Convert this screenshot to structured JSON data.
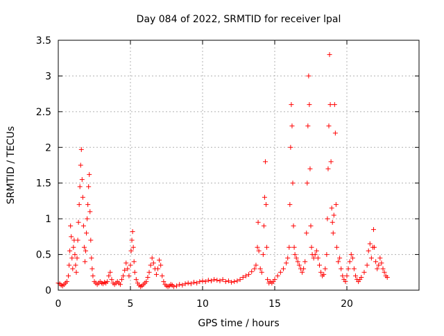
{
  "chart_data": {
    "type": "scatter",
    "title": "Day 084 of 2022, SRMTID for receiver lpal",
    "xlabel": "GPS time / hours",
    "ylabel": "SRMTID / TECUs",
    "xlim": [
      0,
      25
    ],
    "ylim": [
      0,
      3.5
    ],
    "x_ticks": [
      0,
      5,
      10,
      15,
      20
    ],
    "x_tick_labels": [
      "0",
      "5",
      "10",
      "15",
      "20"
    ],
    "y_ticks": [
      0,
      0.5,
      1,
      1.5,
      2,
      2.5,
      3,
      3.5
    ],
    "y_tick_labels": [
      "0",
      "0.5",
      "1",
      "1.5",
      "2",
      "2.5",
      "3",
      "3.5"
    ],
    "grid": true,
    "marker": "+",
    "color": "#ff0000",
    "series": [
      {
        "name": "SRMTID",
        "points": [
          [
            0.0,
            0.1
          ],
          [
            0.1,
            0.09
          ],
          [
            0.2,
            0.07
          ],
          [
            0.3,
            0.06
          ],
          [
            0.4,
            0.08
          ],
          [
            0.5,
            0.1
          ],
          [
            0.6,
            0.12
          ],
          [
            0.7,
            0.2
          ],
          [
            0.75,
            0.35
          ],
          [
            0.8,
            0.55
          ],
          [
            0.85,
            0.9
          ],
          [
            0.9,
            0.75
          ],
          [
            0.95,
            0.45
          ],
          [
            1.0,
            0.3
          ],
          [
            1.05,
            0.6
          ],
          [
            1.1,
            0.7
          ],
          [
            1.15,
            0.5
          ],
          [
            1.2,
            0.35
          ],
          [
            1.25,
            0.25
          ],
          [
            1.3,
            0.45
          ],
          [
            1.35,
            0.7
          ],
          [
            1.4,
            0.95
          ],
          [
            1.45,
            1.2
          ],
          [
            1.5,
            1.45
          ],
          [
            1.55,
            1.75
          ],
          [
            1.6,
            1.97
          ],
          [
            1.65,
            1.55
          ],
          [
            1.7,
            1.3
          ],
          [
            1.75,
            0.9
          ],
          [
            1.8,
            0.6
          ],
          [
            1.85,
            0.4
          ],
          [
            1.9,
            0.55
          ],
          [
            1.95,
            0.8
          ],
          [
            2.0,
            1.0
          ],
          [
            2.05,
            1.2
          ],
          [
            2.1,
            1.45
          ],
          [
            2.15,
            1.62
          ],
          [
            2.2,
            1.1
          ],
          [
            2.25,
            0.7
          ],
          [
            2.3,
            0.45
          ],
          [
            2.35,
            0.3
          ],
          [
            2.4,
            0.2
          ],
          [
            2.5,
            0.12
          ],
          [
            2.6,
            0.1
          ],
          [
            2.7,
            0.08
          ],
          [
            2.8,
            0.1
          ],
          [
            2.9,
            0.12
          ],
          [
            3.0,
            0.1
          ],
          [
            3.1,
            0.09
          ],
          [
            3.2,
            0.11
          ],
          [
            3.3,
            0.1
          ],
          [
            3.4,
            0.12
          ],
          [
            3.5,
            0.2
          ],
          [
            3.6,
            0.25
          ],
          [
            3.7,
            0.15
          ],
          [
            3.8,
            0.1
          ],
          [
            3.9,
            0.08
          ],
          [
            4.0,
            0.1
          ],
          [
            4.1,
            0.12
          ],
          [
            4.2,
            0.1
          ],
          [
            4.3,
            0.08
          ],
          [
            4.4,
            0.15
          ],
          [
            4.5,
            0.2
          ],
          [
            4.6,
            0.28
          ],
          [
            4.7,
            0.38
          ],
          [
            4.8,
            0.3
          ],
          [
            4.9,
            0.2
          ],
          [
            5.0,
            0.35
          ],
          [
            5.05,
            0.55
          ],
          [
            5.1,
            0.7
          ],
          [
            5.15,
            0.82
          ],
          [
            5.2,
            0.6
          ],
          [
            5.25,
            0.4
          ],
          [
            5.3,
            0.25
          ],
          [
            5.4,
            0.15
          ],
          [
            5.5,
            0.1
          ],
          [
            5.6,
            0.07
          ],
          [
            5.7,
            0.05
          ],
          [
            5.8,
            0.06
          ],
          [
            5.9,
            0.08
          ],
          [
            6.0,
            0.1
          ],
          [
            6.1,
            0.12
          ],
          [
            6.2,
            0.18
          ],
          [
            6.3,
            0.25
          ],
          [
            6.4,
            0.35
          ],
          [
            6.5,
            0.45
          ],
          [
            6.6,
            0.38
          ],
          [
            6.7,
            0.3
          ],
          [
            6.8,
            0.22
          ],
          [
            6.9,
            0.3
          ],
          [
            7.0,
            0.42
          ],
          [
            7.1,
            0.35
          ],
          [
            7.2,
            0.2
          ],
          [
            7.3,
            0.12
          ],
          [
            7.4,
            0.08
          ],
          [
            7.5,
            0.06
          ],
          [
            7.6,
            0.05
          ],
          [
            7.7,
            0.06
          ],
          [
            7.8,
            0.08
          ],
          [
            7.9,
            0.07
          ],
          [
            8.0,
            0.05
          ],
          [
            8.2,
            0.06
          ],
          [
            8.4,
            0.08
          ],
          [
            8.6,
            0.07
          ],
          [
            8.8,
            0.09
          ],
          [
            9.0,
            0.1
          ],
          [
            9.2,
            0.09
          ],
          [
            9.4,
            0.11
          ],
          [
            9.6,
            0.1
          ],
          [
            9.8,
            0.12
          ],
          [
            10.0,
            0.13
          ],
          [
            10.2,
            0.12
          ],
          [
            10.4,
            0.14
          ],
          [
            10.6,
            0.13
          ],
          [
            10.8,
            0.15
          ],
          [
            11.0,
            0.14
          ],
          [
            11.2,
            0.13
          ],
          [
            11.4,
            0.15
          ],
          [
            11.6,
            0.12
          ],
          [
            11.8,
            0.13
          ],
          [
            12.0,
            0.11
          ],
          [
            12.2,
            0.12
          ],
          [
            12.4,
            0.13
          ],
          [
            12.6,
            0.15
          ],
          [
            12.8,
            0.18
          ],
          [
            13.0,
            0.2
          ],
          [
            13.2,
            0.22
          ],
          [
            13.4,
            0.26
          ],
          [
            13.6,
            0.3
          ],
          [
            13.7,
            0.35
          ],
          [
            13.8,
            0.6
          ],
          [
            13.85,
            0.95
          ],
          [
            13.9,
            0.55
          ],
          [
            14.0,
            0.3
          ],
          [
            14.1,
            0.25
          ],
          [
            14.2,
            0.5
          ],
          [
            14.25,
            0.9
          ],
          [
            14.3,
            1.3
          ],
          [
            14.35,
            1.8
          ],
          [
            14.4,
            1.2
          ],
          [
            14.45,
            0.6
          ],
          [
            14.5,
            0.15
          ],
          [
            14.6,
            0.1
          ],
          [
            14.7,
            0.12
          ],
          [
            14.8,
            0.1
          ],
          [
            14.9,
            0.12
          ],
          [
            15.0,
            0.15
          ],
          [
            15.2,
            0.2
          ],
          [
            15.4,
            0.25
          ],
          [
            15.6,
            0.3
          ],
          [
            15.8,
            0.38
          ],
          [
            15.9,
            0.45
          ],
          [
            16.0,
            0.6
          ],
          [
            16.05,
            1.2
          ],
          [
            16.1,
            2.0
          ],
          [
            16.15,
            2.6
          ],
          [
            16.2,
            2.3
          ],
          [
            16.25,
            1.5
          ],
          [
            16.3,
            0.9
          ],
          [
            16.35,
            0.6
          ],
          [
            16.4,
            0.5
          ],
          [
            16.5,
            0.45
          ],
          [
            16.6,
            0.4
          ],
          [
            16.7,
            0.35
          ],
          [
            16.8,
            0.3
          ],
          [
            16.9,
            0.25
          ],
          [
            17.0,
            0.3
          ],
          [
            17.1,
            0.4
          ],
          [
            17.2,
            0.8
          ],
          [
            17.25,
            1.5
          ],
          [
            17.3,
            2.3
          ],
          [
            17.35,
            3.0
          ],
          [
            17.4,
            2.6
          ],
          [
            17.45,
            1.7
          ],
          [
            17.5,
            0.9
          ],
          [
            17.55,
            0.6
          ],
          [
            17.6,
            0.5
          ],
          [
            17.7,
            0.45
          ],
          [
            17.8,
            0.5
          ],
          [
            17.9,
            0.55
          ],
          [
            18.0,
            0.45
          ],
          [
            18.1,
            0.35
          ],
          [
            18.2,
            0.25
          ],
          [
            18.3,
            0.2
          ],
          [
            18.4,
            0.22
          ],
          [
            18.5,
            0.3
          ],
          [
            18.6,
            0.5
          ],
          [
            18.65,
            1.0
          ],
          [
            18.7,
            1.7
          ],
          [
            18.75,
            2.3
          ],
          [
            18.8,
            3.3
          ],
          [
            18.85,
            2.6
          ],
          [
            18.9,
            1.8
          ],
          [
            18.95,
            1.15
          ],
          [
            19.0,
            0.95
          ],
          [
            19.05,
            0.8
          ],
          [
            19.1,
            1.05
          ],
          [
            19.15,
            2.6
          ],
          [
            19.2,
            2.2
          ],
          [
            19.25,
            1.2
          ],
          [
            19.3,
            0.6
          ],
          [
            19.4,
            0.4
          ],
          [
            19.5,
            0.45
          ],
          [
            19.6,
            0.3
          ],
          [
            19.7,
            0.2
          ],
          [
            19.8,
            0.15
          ],
          [
            19.9,
            0.12
          ],
          [
            20.0,
            0.2
          ],
          [
            20.1,
            0.3
          ],
          [
            20.2,
            0.4
          ],
          [
            20.3,
            0.5
          ],
          [
            20.4,
            0.45
          ],
          [
            20.5,
            0.3
          ],
          [
            20.6,
            0.2
          ],
          [
            20.7,
            0.15
          ],
          [
            20.8,
            0.12
          ],
          [
            20.9,
            0.15
          ],
          [
            21.0,
            0.18
          ],
          [
            21.2,
            0.25
          ],
          [
            21.4,
            0.35
          ],
          [
            21.5,
            0.55
          ],
          [
            21.6,
            0.65
          ],
          [
            21.7,
            0.45
          ],
          [
            21.8,
            0.6
          ],
          [
            21.85,
            0.85
          ],
          [
            21.9,
            0.6
          ],
          [
            22.0,
            0.4
          ],
          [
            22.1,
            0.3
          ],
          [
            22.2,
            0.35
          ],
          [
            22.3,
            0.45
          ],
          [
            22.4,
            0.38
          ],
          [
            22.5,
            0.3
          ],
          [
            22.6,
            0.25
          ],
          [
            22.7,
            0.2
          ],
          [
            22.8,
            0.18
          ]
        ]
      }
    ]
  }
}
